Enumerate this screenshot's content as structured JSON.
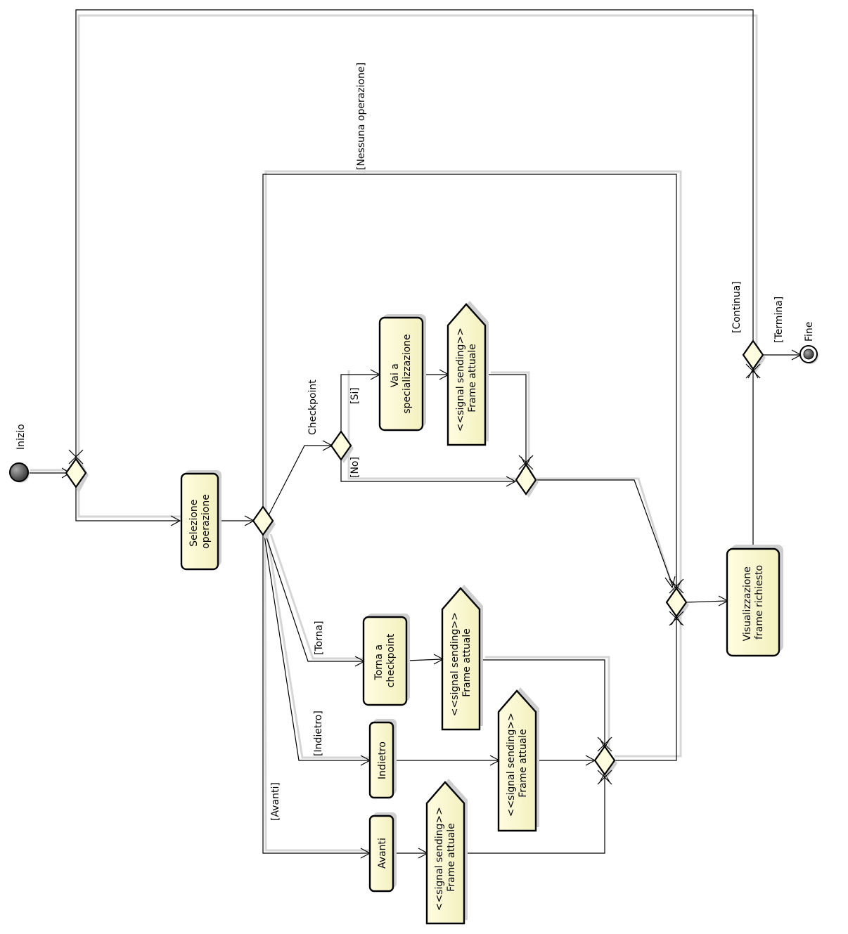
{
  "nodes": {
    "initial_label": "Inizio",
    "final_label": "Fine",
    "selezione_operazione": [
      "Selezione",
      "operazione"
    ],
    "vai_a_specializzazione": [
      "Vai a",
      "specializzazione"
    ],
    "torna_a_checkpoint": [
      "Torna a",
      "checkpoint"
    ],
    "indietro": [
      "Indietro"
    ],
    "avanti": [
      "Avanti"
    ],
    "visualizzazione_frame": [
      "Visualizzazione",
      "frame richiesto"
    ],
    "signal_sending": [
      "<<signal sending>>",
      "Frame attuale"
    ]
  },
  "guards": {
    "nessuna_operazione": "[Nessuna operazione]",
    "checkpoint": "Checkpoint",
    "si": "[Si]",
    "no": "[No]",
    "torna": "[Torna]",
    "indietro": "[Indietro]",
    "avanti": "[Avanti]",
    "continua": "[Continua]",
    "termina": "[Termina]"
  },
  "colors": {
    "node_fill_top": "#fffde0",
    "node_fill_bottom": "#f3f0bf",
    "stroke": "#000000",
    "shadow": "#cfcfcf"
  }
}
